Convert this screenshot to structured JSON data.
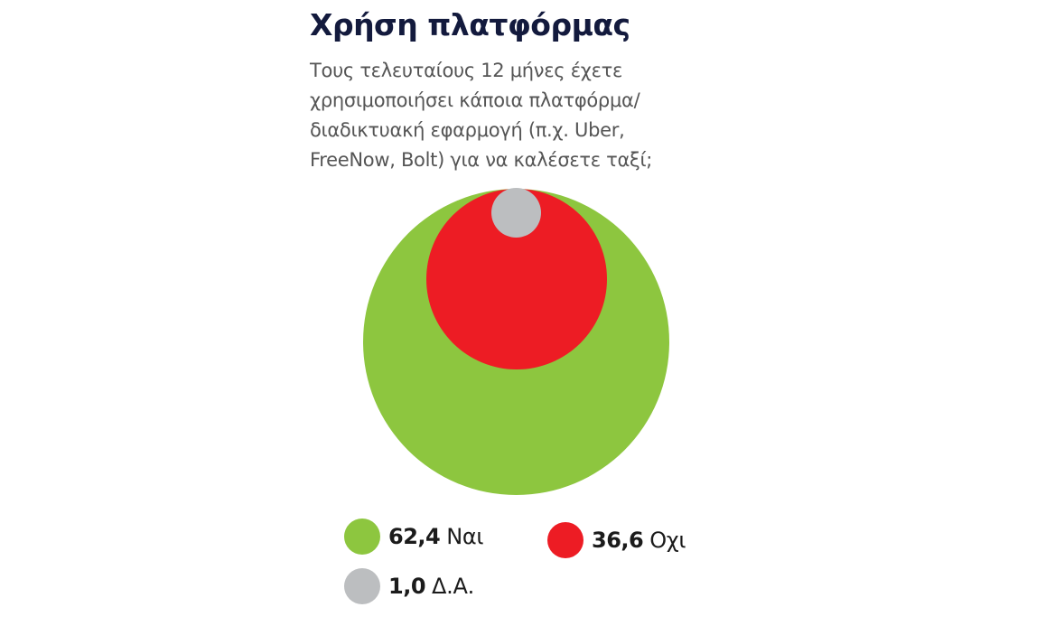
{
  "chart_data": {
    "type": "bubble",
    "title": "Χρήση πλατφόρμας",
    "subtitle": "Τους τελευταίους 12 μήνες έχετε χρησιμοποιήσει κάποια πλατφόρμα/ διαδικτυακή εφαρμογή (π.χ. Uber, FreeNow, Bolt) για να καλέσετε ταξί;",
    "categories": [
      "Ναι",
      "Οχι",
      "Δ.Α."
    ],
    "values": [
      62.4,
      36.6,
      1.0
    ],
    "value_labels": [
      "62,4",
      "36,6",
      "1,0"
    ],
    "colors": [
      "#8dc63f",
      "#ed1c24",
      "#bcbec0"
    ],
    "unit": "%",
    "legend_position": "bottom",
    "layout": "nested circles aligned at top"
  },
  "header": {
    "title": "Χρήση πλατφόρμας",
    "subtitle_lines": [
      "Τους τελευταίους 12 μήνες έχετε",
      "χρησιμοποιήσει κάποια πλατφόρμα/",
      "διαδικτυακή εφαρμογή (π.χ. Uber,",
      "FreeNow, Bolt) για να καλέσετε ταξί;"
    ]
  },
  "legend": [
    {
      "value": "62,4",
      "label": "Ναι",
      "color": "#8dc63f"
    },
    {
      "value": "36,6",
      "label": "Οχι",
      "color": "#ed1c24"
    },
    {
      "value": "1,0",
      "label": "Δ.Α.",
      "color": "#bcbec0"
    }
  ]
}
